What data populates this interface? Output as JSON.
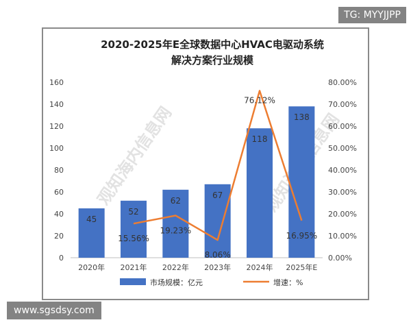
{
  "badges": {
    "tg": "TG: MYYJJPP",
    "site": "www.sgsdsy.com"
  },
  "watermarks": [
    "观知海内信息网",
    "观知海内信息网"
  ],
  "chart_data": {
    "type": "bar",
    "title_line1": "2020-2025年E全球数据中心HVAC电驱动系统",
    "title_line2": "解决方案行业规模",
    "categories": [
      "2020年",
      "2021年",
      "2022年",
      "2023年",
      "2024年",
      "2025年E"
    ],
    "series": [
      {
        "name": "市场规模：亿元",
        "type": "bar",
        "axis": "left",
        "color": "#4472c4",
        "values": [
          45,
          52,
          62,
          67,
          118,
          138
        ],
        "labels": [
          "45",
          "52",
          "62",
          "67",
          "118",
          "138"
        ]
      },
      {
        "name": "增速：%",
        "type": "line",
        "axis": "right",
        "color": "#ed7d31",
        "values": [
          null,
          15.56,
          19.23,
          8.06,
          76.12,
          16.95
        ],
        "labels": [
          "",
          "15.56%",
          "19.23%",
          "8.06%",
          "76.12%",
          "16.95%"
        ]
      }
    ],
    "y_left": {
      "min": 0,
      "max": 160,
      "ticks": [
        0,
        20,
        40,
        60,
        80,
        100,
        120,
        140,
        160
      ]
    },
    "y_right": {
      "min": 0,
      "max": 80,
      "ticks": [
        "0.00%",
        "10.00%",
        "20.00%",
        "30.00%",
        "40.00%",
        "50.00%",
        "60.00%",
        "70.00%",
        "80.00%"
      ]
    },
    "grid": false,
    "legend_position": "bottom"
  }
}
